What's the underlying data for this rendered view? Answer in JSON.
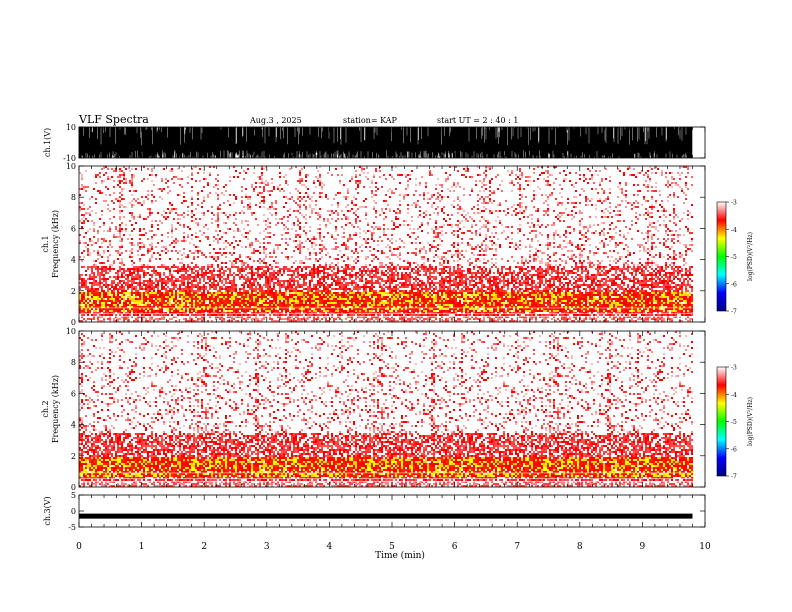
{
  "header": {
    "title": "VLF Spectra",
    "date": "Aug.3 , 2025",
    "station": "station= KAP",
    "start": "start UT = 2 : 40 : 1"
  },
  "chart_data": [
    {
      "type": "line",
      "panel": "waveform-ch1",
      "ylabel": "ch.1(V)",
      "ylim": [
        -10,
        10
      ],
      "yticks": [
        "10",
        "-10"
      ],
      "xlim": [
        0,
        10
      ],
      "description_level": "saturated broadband waveform filling most of the range",
      "data_end_min": 9.8
    },
    {
      "type": "heatmap",
      "panel": "spectrogram-ch1",
      "ylabel": "ch.1 Frequency (kHz)",
      "ylim": [
        0,
        10
      ],
      "yticks": [
        "0",
        "2",
        "4",
        "6",
        "8",
        "10"
      ],
      "xlim": [
        0,
        10
      ],
      "data_end_min": 9.8,
      "intense_band_khz": [
        0.7,
        2.0
      ],
      "red_band_khz": [
        0.5,
        3.7
      ],
      "colorbar": {
        "label": "log(PSD)(V²/Hz)",
        "min": -7,
        "max": -3,
        "ticks": [
          "-3",
          "-4",
          "-5",
          "-6",
          "-7"
        ],
        "colors": [
          "#000080",
          "#0000ff",
          "#00ffff",
          "#00ff00",
          "#ffff00",
          "#ff0000",
          "#ffffff"
        ]
      }
    },
    {
      "type": "heatmap",
      "panel": "spectrogram-ch2",
      "ylabel": "ch.2 Frequency (kHz)",
      "ylim": [
        0,
        10
      ],
      "yticks": [
        "0",
        "2",
        "4",
        "6",
        "8",
        "10"
      ],
      "xlim": [
        0,
        10
      ],
      "data_end_min": 9.8,
      "intense_band_khz": [
        0.7,
        2.0
      ],
      "red_band_khz": [
        0.5,
        3.5
      ],
      "colorbar": {
        "label": "log(PSD)(V²/Hz)",
        "min": -7,
        "max": -3,
        "ticks": [
          "-3",
          "-4",
          "-5",
          "-6",
          "-7"
        ],
        "colors": [
          "#000080",
          "#0000ff",
          "#00ffff",
          "#00ff00",
          "#ffff00",
          "#ff0000",
          "#ffffff"
        ]
      }
    },
    {
      "type": "line",
      "panel": "waveform-ch3",
      "ylabel": "ch.3(V)",
      "ylim": [
        -5,
        5
      ],
      "yticks": [
        "5",
        "0",
        "-5"
      ],
      "xlim": [
        0,
        10
      ],
      "trace_level_v": -1.6,
      "data_end_min": 9.8
    }
  ],
  "xaxis": {
    "label": "Time (min)",
    "ticks": [
      "0",
      "1",
      "2",
      "3",
      "4",
      "5",
      "6",
      "7",
      "8",
      "9",
      "10"
    ]
  }
}
